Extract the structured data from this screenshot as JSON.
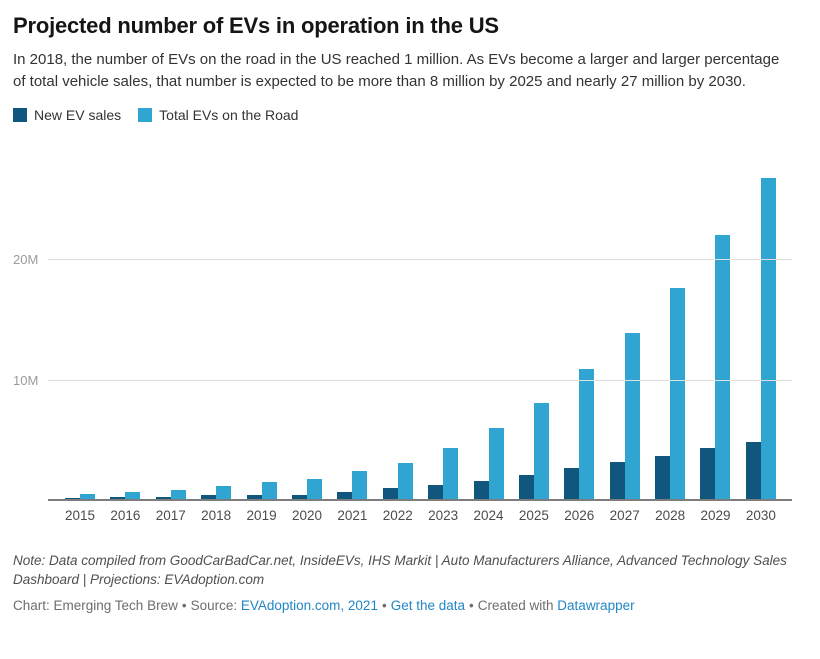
{
  "header": {
    "title": "Projected number of EVs in operation in the US",
    "description": "In 2018, the number of EVs on the road in the US reached 1 million. As EVs become a larger and larger percentage of total vehicle sales, that number is expected to be more than 8 million by 2025 and nearly 27 million by 2030."
  },
  "colors": {
    "new_ev_sales": "#10567d",
    "total_evs": "#31a5d2",
    "link": "#2286c7"
  },
  "chart_data": {
    "type": "bar",
    "title": "Projected number of EVs in operation in the US",
    "categories": [
      "2015",
      "2016",
      "2017",
      "2018",
      "2019",
      "2020",
      "2021",
      "2022",
      "2023",
      "2024",
      "2025",
      "2026",
      "2027",
      "2028",
      "2029",
      "2030"
    ],
    "series": [
      {
        "name": "New EV sales",
        "color": "#10567d",
        "values": [
          0.12,
          0.16,
          0.2,
          0.36,
          0.33,
          0.3,
          0.6,
          0.95,
          1.2,
          1.5,
          2.0,
          2.6,
          3.1,
          3.6,
          4.2,
          4.7
        ]
      },
      {
        "name": "Total EVs on the Road",
        "color": "#31a5d2",
        "values": [
          0.4,
          0.55,
          0.75,
          1.1,
          1.4,
          1.7,
          2.35,
          3.0,
          4.2,
          5.9,
          8.0,
          10.8,
          13.8,
          17.5,
          21.9,
          26.7
        ]
      }
    ],
    "xlabel": "",
    "ylabel": "",
    "unit": "millions of vehicles",
    "ylim": [
      0,
      27
    ],
    "yticks": [
      {
        "value": 10,
        "label": "10M"
      },
      {
        "value": 20,
        "label": "20M"
      }
    ],
    "grid": true,
    "legend_position": "top-left"
  },
  "footer": {
    "note": "Note: Data compiled from GoodCarBadCar.net, InsideEVs, IHS Markit | Auto Manufacturers Alliance, Advanced Technology Sales Dashboard | Projections: EVAdoption.com",
    "credit": {
      "chart_by": "Chart: Emerging Tech Brew",
      "separator": "•",
      "source_label": "Source:",
      "source_link": "EVAdoption.com, 2021",
      "get_data_link": "Get the data",
      "created_with": "Created with",
      "datawrapper_link": "Datawrapper"
    }
  }
}
